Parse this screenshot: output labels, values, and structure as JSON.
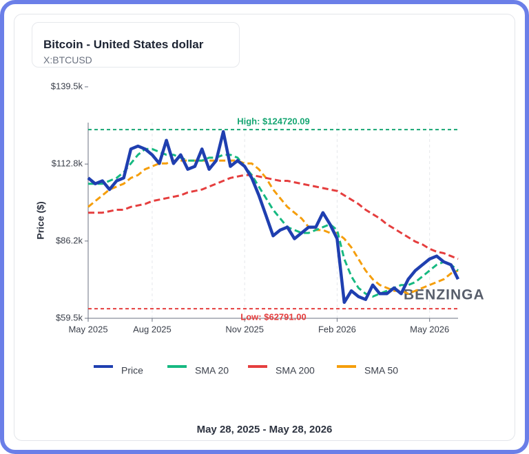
{
  "chart_data": {
    "type": "line",
    "title": "Bitcoin - United States dollar",
    "subtitle": "X:BTCUSD",
    "y_label": "Price ($)",
    "date_range": "May 28, 2025 - May 28, 2026",
    "watermark": "BENZINGA",
    "categories": [
      "May 2025",
      null,
      null,
      null,
      null,
      null,
      null,
      null,
      null,
      "Aug 2025",
      null,
      null,
      null,
      null,
      null,
      null,
      null,
      null,
      null,
      null,
      null,
      null,
      "Nov 2025",
      null,
      null,
      null,
      null,
      null,
      null,
      null,
      null,
      null,
      null,
      null,
      null,
      "Feb 2026",
      null,
      null,
      null,
      null,
      null,
      null,
      null,
      null,
      null,
      null,
      null,
      null,
      "May 2026",
      null,
      null,
      null,
      null
    ],
    "ylim": [
      59500,
      139500
    ],
    "yticks": [
      {
        "value": 59500,
        "label": "$59.5k"
      },
      {
        "value": 86200,
        "label": "$86.2k"
      },
      {
        "value": 112800,
        "label": "$112.8k"
      },
      {
        "value": 139500,
        "label": "$139.5k"
      }
    ],
    "xgrid": true,
    "annotations": [
      {
        "label": "High: $124720.09",
        "value": 124720.09,
        "color": "#17a673"
      },
      {
        "label": "Low: $62791.00",
        "value": 62791.0,
        "color": "#e53e3e"
      }
    ],
    "series": [
      {
        "name": "Price",
        "color": "#1f3fb0",
        "style": "solid",
        "values": [
          108000,
          106000,
          107000,
          104000,
          107000,
          108000,
          118000,
          119000,
          118000,
          116000,
          113000,
          121000,
          113000,
          116000,
          111000,
          112000,
          118000,
          111000,
          114000,
          124000,
          112000,
          114000,
          112000,
          108000,
          102000,
          95000,
          88000,
          90000,
          91000,
          87000,
          89000,
          91000,
          91000,
          96000,
          92000,
          87000,
          65000,
          69000,
          67000,
          66000,
          71000,
          68000,
          68000,
          70000,
          68000,
          73000,
          76000,
          78000,
          80000,
          81000,
          79000,
          78000,
          73000
        ]
      },
      {
        "name": "SMA 20",
        "color": "#16b981",
        "style": "dashed",
        "values": [
          106000,
          106000,
          106000,
          107000,
          108000,
          110000,
          113000,
          116000,
          118000,
          118000,
          117000,
          116000,
          116000,
          115000,
          114000,
          114000,
          114000,
          115000,
          115000,
          116000,
          116000,
          115000,
          112000,
          109000,
          105000,
          101000,
          97000,
          94000,
          91000,
          90000,
          89000,
          89000,
          90000,
          91000,
          92000,
          90000,
          80000,
          74000,
          70000,
          68000,
          67000,
          68000,
          69000,
          70000,
          71000,
          71000,
          72000,
          74000,
          76000,
          78000,
          79000,
          78000,
          76000
        ]
      },
      {
        "name": "SMA 200",
        "color": "#e53e3e",
        "style": "dashed",
        "values": [
          96000,
          96000,
          96000,
          96500,
          97000,
          97000,
          98000,
          98500,
          99000,
          100000,
          100500,
          101000,
          101500,
          102000,
          103000,
          103500,
          104000,
          105000,
          106000,
          107000,
          108000,
          108500,
          109000,
          109000,
          108500,
          108000,
          107500,
          107000,
          107000,
          106500,
          106000,
          105500,
          105000,
          104500,
          104000,
          103500,
          102000,
          100500,
          99000,
          97000,
          95500,
          94000,
          92000,
          90500,
          89000,
          87500,
          86000,
          85000,
          83500,
          82500,
          82000,
          81000,
          80000
        ]
      },
      {
        "name": "SMA 50",
        "color": "#f59e0b",
        "style": "dashed",
        "values": [
          98000,
          100000,
          102000,
          104000,
          105000,
          106000,
          108000,
          109000,
          111000,
          112000,
          113000,
          113000,
          114000,
          114000,
          114000,
          114000,
          114000,
          114000,
          114000,
          114000,
          114000,
          114000,
          113000,
          113000,
          111000,
          108000,
          104000,
          101000,
          98000,
          96000,
          94000,
          91000,
          90000,
          90000,
          89000,
          89000,
          87000,
          84000,
          80000,
          76000,
          73000,
          71000,
          70000,
          69000,
          69000,
          68000,
          69000,
          70000,
          71000,
          72000,
          73000,
          75000,
          76000
        ]
      }
    ]
  }
}
